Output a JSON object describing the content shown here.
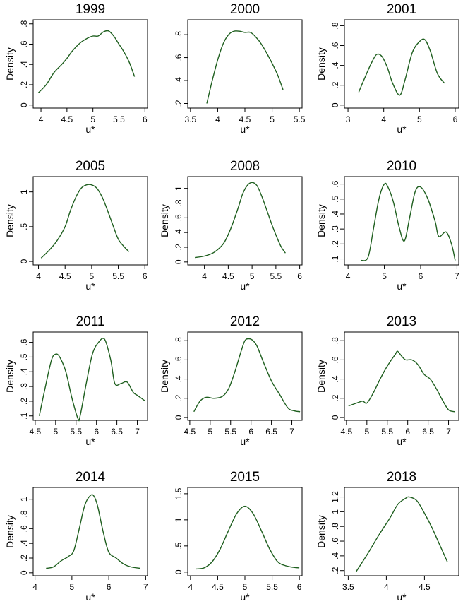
{
  "chart_data": [
    {
      "type": "line",
      "title": "1999",
      "xlabel": "u*",
      "ylabel": "Density",
      "xlim": [
        3.85,
        6.05
      ],
      "ylim": [
        -0.03,
        0.84
      ],
      "xticks": [
        {
          "v": 4,
          "label": "4"
        },
        {
          "v": 4.5,
          "label": "4.5"
        },
        {
          "v": 5,
          "label": "5"
        },
        {
          "v": 5.5,
          "label": "5.5"
        },
        {
          "v": 6,
          "label": "6"
        }
      ],
      "yticks": [
        {
          "v": 0,
          "label": "0"
        },
        {
          "v": 0.2,
          "label": ".2"
        },
        {
          "v": 0.4,
          "label": ".4"
        },
        {
          "v": 0.6,
          "label": ".6"
        },
        {
          "v": 0.8,
          "label": ".8"
        }
      ],
      "series": [
        {
          "color": "#1f5f1f",
          "x": [
            3.95,
            4.1,
            4.25,
            4.4,
            4.5,
            4.6,
            4.75,
            4.9,
            5.0,
            5.1,
            5.2,
            5.3,
            5.4,
            5.5,
            5.6,
            5.7,
            5.8
          ],
          "y": [
            0.12,
            0.2,
            0.32,
            0.4,
            0.46,
            0.53,
            0.61,
            0.66,
            0.68,
            0.68,
            0.72,
            0.73,
            0.68,
            0.6,
            0.52,
            0.42,
            0.28
          ]
        }
      ]
    },
    {
      "type": "line",
      "title": "2000",
      "xlabel": "u*",
      "ylabel": "",
      "xlim": [
        3.45,
        5.55
      ],
      "ylim": [
        0.16,
        0.93
      ],
      "xticks": [
        {
          "v": 3.5,
          "label": "3.5"
        },
        {
          "v": 4,
          "label": "4"
        },
        {
          "v": 4.5,
          "label": "4.5"
        },
        {
          "v": 5,
          "label": "5"
        },
        {
          "v": 5.5,
          "label": "5.5"
        }
      ],
      "yticks": [
        {
          "v": 0.2,
          "label": ".2"
        },
        {
          "v": 0.4,
          "label": ".4"
        },
        {
          "v": 0.6,
          "label": ".6"
        },
        {
          "v": 0.8,
          "label": ".8"
        }
      ],
      "series": [
        {
          "color": "#1f5f1f",
          "x": [
            3.8,
            3.9,
            4.0,
            4.1,
            4.2,
            4.3,
            4.4,
            4.5,
            4.6,
            4.7,
            4.8,
            4.9,
            5.0,
            5.1,
            5.2
          ],
          "y": [
            0.2,
            0.4,
            0.58,
            0.72,
            0.8,
            0.83,
            0.83,
            0.82,
            0.82,
            0.78,
            0.72,
            0.64,
            0.55,
            0.45,
            0.32
          ]
        }
      ]
    },
    {
      "type": "line",
      "title": "2001",
      "xlabel": "u*",
      "ylabel": "Density",
      "xlim": [
        2.9,
        6.1
      ],
      "ylim": [
        -0.03,
        0.86
      ],
      "xticks": [
        {
          "v": 3,
          "label": "3"
        },
        {
          "v": 4,
          "label": "4"
        },
        {
          "v": 5,
          "label": "5"
        },
        {
          "v": 6,
          "label": "6"
        }
      ],
      "yticks": [
        {
          "v": 0,
          "label": "0"
        },
        {
          "v": 0.2,
          "label": ".2"
        },
        {
          "v": 0.4,
          "label": ".4"
        },
        {
          "v": 0.6,
          "label": ".6"
        },
        {
          "v": 0.8,
          "label": ".8"
        }
      ],
      "series": [
        {
          "color": "#1f5f1f",
          "x": [
            3.3,
            3.5,
            3.65,
            3.8,
            3.95,
            4.1,
            4.25,
            4.45,
            4.6,
            4.8,
            5.0,
            5.15,
            5.3,
            5.5,
            5.7
          ],
          "y": [
            0.13,
            0.3,
            0.42,
            0.51,
            0.49,
            0.38,
            0.22,
            0.1,
            0.26,
            0.53,
            0.64,
            0.66,
            0.55,
            0.32,
            0.22
          ]
        }
      ]
    },
    {
      "type": "line",
      "title": "2005",
      "xlabel": "u*",
      "ylabel": "Density",
      "xlim": [
        3.9,
        6.05
      ],
      "ylim": [
        -0.05,
        1.22
      ],
      "xticks": [
        {
          "v": 4,
          "label": "4"
        },
        {
          "v": 4.5,
          "label": "4.5"
        },
        {
          "v": 5,
          "label": "5"
        },
        {
          "v": 5.5,
          "label": "5.5"
        },
        {
          "v": 6,
          "label": "6"
        }
      ],
      "yticks": [
        {
          "v": 0,
          "label": "0"
        },
        {
          "v": 0.5,
          "label": ".5"
        },
        {
          "v": 1,
          "label": "1"
        }
      ],
      "series": [
        {
          "color": "#1f5f1f",
          "x": [
            4.05,
            4.2,
            4.35,
            4.5,
            4.6,
            4.7,
            4.8,
            4.9,
            5.0,
            5.1,
            5.2,
            5.3,
            5.4,
            5.5,
            5.6,
            5.7
          ],
          "y": [
            0.05,
            0.16,
            0.3,
            0.5,
            0.73,
            0.92,
            1.05,
            1.1,
            1.1,
            1.05,
            0.92,
            0.73,
            0.52,
            0.32,
            0.22,
            0.14
          ]
        }
      ]
    },
    {
      "type": "line",
      "title": "2008",
      "xlabel": "u*",
      "ylabel": "Density",
      "xlim": [
        3.65,
        6.05
      ],
      "ylim": [
        -0.04,
        1.16
      ],
      "xticks": [
        {
          "v": 4,
          "label": "4"
        },
        {
          "v": 4.5,
          "label": "4.5"
        },
        {
          "v": 5,
          "label": "5"
        },
        {
          "v": 5.5,
          "label": "5.5"
        },
        {
          "v": 6,
          "label": "6"
        }
      ],
      "yticks": [
        {
          "v": 0,
          "label": "0"
        },
        {
          "v": 0.2,
          "label": ".2"
        },
        {
          "v": 0.4,
          "label": ".4"
        },
        {
          "v": 0.6,
          "label": ".6"
        },
        {
          "v": 0.8,
          "label": ".8"
        },
        {
          "v": 1,
          "label": "1"
        }
      ],
      "series": [
        {
          "color": "#1f5f1f",
          "x": [
            3.8,
            4.0,
            4.2,
            4.4,
            4.55,
            4.7,
            4.8,
            4.9,
            5.0,
            5.1,
            5.2,
            5.3,
            5.45,
            5.6,
            5.7
          ],
          "y": [
            0.06,
            0.08,
            0.13,
            0.25,
            0.45,
            0.72,
            0.92,
            1.04,
            1.08,
            1.04,
            0.9,
            0.72,
            0.45,
            0.22,
            0.12
          ]
        }
      ]
    },
    {
      "type": "line",
      "title": "2010",
      "xlabel": "u*",
      "ylabel": "Density",
      "xlim": [
        3.9,
        7.05
      ],
      "ylim": [
        0.06,
        0.65
      ],
      "xticks": [
        {
          "v": 4,
          "label": "4"
        },
        {
          "v": 5,
          "label": "5"
        },
        {
          "v": 6,
          "label": "6"
        },
        {
          "v": 7,
          "label": "7"
        }
      ],
      "yticks": [
        {
          "v": 0.1,
          "label": ".1"
        },
        {
          "v": 0.2,
          "label": ".2"
        },
        {
          "v": 0.3,
          "label": ".3"
        },
        {
          "v": 0.4,
          "label": ".4"
        },
        {
          "v": 0.5,
          "label": ".5"
        },
        {
          "v": 0.6,
          "label": ".6"
        }
      ],
      "series": [
        {
          "color": "#1f5f1f",
          "x": [
            4.35,
            4.55,
            4.7,
            4.85,
            5.0,
            5.1,
            5.25,
            5.4,
            5.55,
            5.7,
            5.85,
            6.0,
            6.2,
            6.4,
            6.5,
            6.7,
            6.85,
            6.95
          ],
          "y": [
            0.09,
            0.11,
            0.3,
            0.5,
            0.6,
            0.58,
            0.48,
            0.32,
            0.22,
            0.38,
            0.55,
            0.58,
            0.5,
            0.35,
            0.25,
            0.28,
            0.2,
            0.09
          ]
        }
      ]
    },
    {
      "type": "line",
      "title": "2011",
      "xlabel": "u*",
      "ylabel": "Density",
      "xlim": [
        4.45,
        7.25
      ],
      "ylim": [
        0.07,
        0.67
      ],
      "xticks": [
        {
          "v": 4.5,
          "label": "4.5"
        },
        {
          "v": 5,
          "label": "5"
        },
        {
          "v": 5.5,
          "label": "5.5"
        },
        {
          "v": 6,
          "label": "6"
        },
        {
          "v": 6.5,
          "label": "6.5"
        },
        {
          "v": 7,
          "label": "7"
        }
      ],
      "yticks": [
        {
          "v": 0.1,
          "label": ".1"
        },
        {
          "v": 0.2,
          "label": ".2"
        },
        {
          "v": 0.3,
          "label": ".3"
        },
        {
          "v": 0.4,
          "label": ".4"
        },
        {
          "v": 0.5,
          "label": ".5"
        },
        {
          "v": 0.6,
          "label": ".6"
        }
      ],
      "series": [
        {
          "color": "#1f5f1f",
          "x": [
            4.6,
            4.75,
            4.9,
            5.0,
            5.1,
            5.25,
            5.4,
            5.55,
            5.6,
            5.75,
            5.9,
            6.05,
            6.2,
            6.35,
            6.45,
            6.6,
            6.75,
            6.9,
            7.0,
            7.2
          ],
          "y": [
            0.1,
            0.3,
            0.48,
            0.52,
            0.5,
            0.4,
            0.22,
            0.08,
            0.1,
            0.32,
            0.52,
            0.6,
            0.62,
            0.48,
            0.32,
            0.32,
            0.33,
            0.26,
            0.24,
            0.2
          ]
        }
      ]
    },
    {
      "type": "line",
      "title": "2012",
      "xlabel": "u*",
      "ylabel": "Density",
      "xlim": [
        4.45,
        7.25
      ],
      "ylim": [
        -0.03,
        0.89
      ],
      "xticks": [
        {
          "v": 4.5,
          "label": "4.5"
        },
        {
          "v": 5,
          "label": "5"
        },
        {
          "v": 5.5,
          "label": "5.5"
        },
        {
          "v": 6,
          "label": "6"
        },
        {
          "v": 6.5,
          "label": "6.5"
        },
        {
          "v": 7,
          "label": "7"
        }
      ],
      "yticks": [
        {
          "v": 0,
          "label": "0"
        },
        {
          "v": 0.2,
          "label": ".2"
        },
        {
          "v": 0.4,
          "label": ".4"
        },
        {
          "v": 0.6,
          "label": ".6"
        },
        {
          "v": 0.8,
          "label": ".8"
        }
      ],
      "series": [
        {
          "color": "#1f5f1f",
          "x": [
            4.6,
            4.75,
            4.9,
            5.1,
            5.3,
            5.45,
            5.6,
            5.75,
            5.85,
            5.95,
            6.05,
            6.15,
            6.3,
            6.5,
            6.7,
            6.9,
            7.05,
            7.2
          ],
          "y": [
            0.06,
            0.17,
            0.21,
            0.2,
            0.22,
            0.3,
            0.47,
            0.68,
            0.8,
            0.82,
            0.8,
            0.74,
            0.58,
            0.38,
            0.24,
            0.1,
            0.07,
            0.06
          ]
        }
      ]
    },
    {
      "type": "line",
      "title": "2013",
      "xlabel": "u*",
      "ylabel": "Density",
      "xlim": [
        4.45,
        7.25
      ],
      "ylim": [
        -0.03,
        0.89
      ],
      "xticks": [
        {
          "v": 4.5,
          "label": "4.5"
        },
        {
          "v": 5,
          "label": "5"
        },
        {
          "v": 5.5,
          "label": "5.5"
        },
        {
          "v": 6,
          "label": "6"
        },
        {
          "v": 6.5,
          "label": "6.5"
        },
        {
          "v": 7,
          "label": "7"
        }
      ],
      "yticks": [
        {
          "v": 0,
          "label": "0"
        },
        {
          "v": 0.2,
          "label": ".2"
        },
        {
          "v": 0.4,
          "label": ".4"
        },
        {
          "v": 0.6,
          "label": ".6"
        },
        {
          "v": 0.8,
          "label": ".8"
        }
      ],
      "series": [
        {
          "color": "#1f5f1f",
          "x": [
            4.55,
            4.75,
            4.9,
            5.0,
            5.15,
            5.3,
            5.45,
            5.6,
            5.7,
            5.75,
            5.85,
            5.95,
            6.1,
            6.25,
            6.4,
            6.55,
            6.7,
            6.85,
            7.0,
            7.15
          ],
          "y": [
            0.12,
            0.15,
            0.17,
            0.15,
            0.25,
            0.38,
            0.5,
            0.6,
            0.66,
            0.69,
            0.64,
            0.6,
            0.6,
            0.55,
            0.45,
            0.4,
            0.3,
            0.18,
            0.08,
            0.06
          ]
        }
      ]
    },
    {
      "type": "line",
      "title": "2014",
      "xlabel": "u*",
      "ylabel": "Density",
      "xlim": [
        3.95,
        7.05
      ],
      "ylim": [
        -0.04,
        1.16
      ],
      "xticks": [
        {
          "v": 4,
          "label": "4"
        },
        {
          "v": 5,
          "label": "5"
        },
        {
          "v": 6,
          "label": "6"
        },
        {
          "v": 7,
          "label": "7"
        }
      ],
      "yticks": [
        {
          "v": 0,
          "label": "0"
        },
        {
          "v": 0.2,
          "label": ".2"
        },
        {
          "v": 0.4,
          "label": ".4"
        },
        {
          "v": 0.6,
          "label": ".6"
        },
        {
          "v": 0.8,
          "label": ".8"
        },
        {
          "v": 1,
          "label": "1"
        }
      ],
      "series": [
        {
          "color": "#1f5f1f",
          "x": [
            4.3,
            4.5,
            4.7,
            4.9,
            5.05,
            5.2,
            5.35,
            5.5,
            5.6,
            5.7,
            5.85,
            6.0,
            6.2,
            6.4,
            6.6,
            6.85
          ],
          "y": [
            0.06,
            0.08,
            0.16,
            0.22,
            0.3,
            0.6,
            0.92,
            1.05,
            1.04,
            0.9,
            0.55,
            0.28,
            0.2,
            0.12,
            0.08,
            0.06
          ]
        }
      ]
    },
    {
      "type": "line",
      "title": "2015",
      "xlabel": "u*",
      "ylabel": "",
      "xlim": [
        3.95,
        6.05
      ],
      "ylim": [
        -0.07,
        1.62
      ],
      "xticks": [
        {
          "v": 4,
          "label": "4"
        },
        {
          "v": 4.5,
          "label": "4.5"
        },
        {
          "v": 5,
          "label": "5"
        },
        {
          "v": 5.5,
          "label": "5.5"
        },
        {
          "v": 6,
          "label": "6"
        }
      ],
      "yticks": [
        {
          "v": 0,
          "label": "0"
        },
        {
          "v": 0.5,
          "label": ".5"
        },
        {
          "v": 1,
          "label": "1"
        },
        {
          "v": 1.5,
          "label": "1.5"
        }
      ],
      "series": [
        {
          "color": "#1f5f1f",
          "x": [
            4.1,
            4.25,
            4.4,
            4.55,
            4.7,
            4.85,
            5.0,
            5.15,
            5.3,
            5.45,
            5.6,
            5.75,
            5.9,
            6.0
          ],
          "y": [
            0.06,
            0.08,
            0.2,
            0.45,
            0.8,
            1.12,
            1.26,
            1.12,
            0.8,
            0.45,
            0.2,
            0.12,
            0.09,
            0.08
          ]
        }
      ]
    },
    {
      "type": "line",
      "title": "2018",
      "xlabel": "u*",
      "ylabel": "Density",
      "xlim": [
        3.45,
        4.95
      ],
      "ylim": [
        0.13,
        1.33
      ],
      "xticks": [
        {
          "v": 3.5,
          "label": "3.5"
        },
        {
          "v": 4,
          "label": "4"
        },
        {
          "v": 4.5,
          "label": "4.5"
        }
      ],
      "yticks": [
        {
          "v": 0.2,
          "label": ".2"
        },
        {
          "v": 0.4,
          "label": ".4"
        },
        {
          "v": 0.6,
          "label": ".6"
        },
        {
          "v": 0.8,
          "label": ".8"
        },
        {
          "v": 1,
          "label": "1"
        },
        {
          "v": 1.2,
          "label": "1.2"
        }
      ],
      "series": [
        {
          "color": "#1f5f1f",
          "x": [
            3.6,
            3.75,
            3.9,
            4.05,
            4.15,
            4.25,
            4.3,
            4.4,
            4.5,
            4.6,
            4.7,
            4.8
          ],
          "y": [
            0.18,
            0.42,
            0.68,
            0.92,
            1.1,
            1.18,
            1.2,
            1.15,
            0.98,
            0.78,
            0.55,
            0.32
          ]
        }
      ]
    }
  ]
}
